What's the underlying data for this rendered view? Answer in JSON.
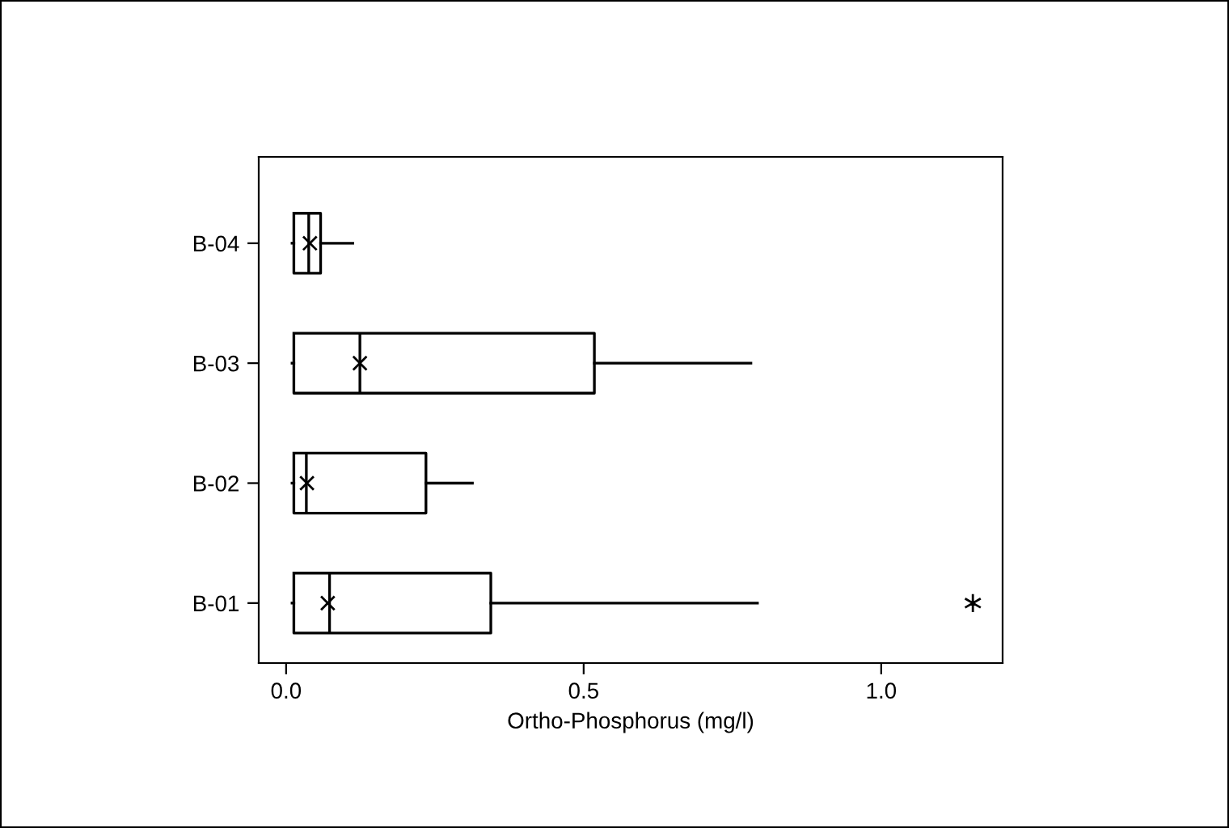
{
  "chart_data": {
    "type": "box",
    "orientation": "horizontal",
    "xlabel": "Ortho-Phosphorus (mg/l)",
    "categories": [
      "B-04",
      "B-03",
      "B-02",
      "B-01"
    ],
    "boxes": [
      {
        "low": 0.01,
        "q1": 0.013,
        "median": 0.038,
        "q3": 0.058,
        "high": 0.112,
        "mean": 0.04
      },
      {
        "low": 0.01,
        "q1": 0.013,
        "median": 0.124,
        "q3": 0.518,
        "high": 0.781,
        "mean": 0.124
      },
      {
        "low": 0.01,
        "q1": 0.013,
        "median": 0.034,
        "q3": 0.235,
        "high": 0.313,
        "mean": 0.035
      },
      {
        "low": 0.01,
        "q1": 0.013,
        "median": 0.073,
        "q3": 0.344,
        "high": 0.792,
        "mean": 0.07,
        "outliers": [
          1.154
        ]
      }
    ],
    "xlim": [
      -0.046,
      1.204
    ],
    "xticks": [
      {
        "value": 0,
        "label": "0.0"
      },
      0.5,
      {
        "value": 1,
        "label": "1.0"
      }
    ],
    "marker": "cross",
    "grid": false
  }
}
